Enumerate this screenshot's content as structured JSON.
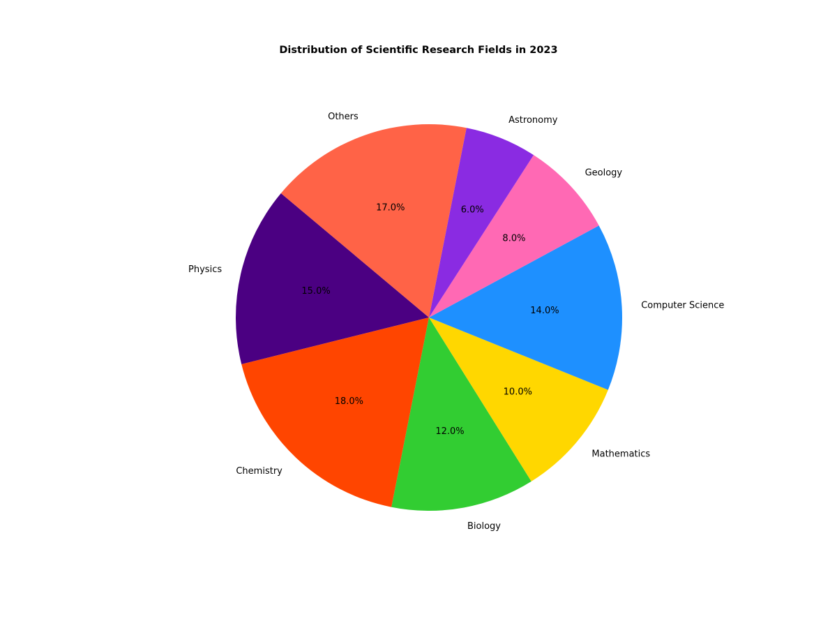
{
  "chart_data": {
    "type": "pie",
    "title": "Distribution of Scientific Research Fields in 2023",
    "categories": [
      "Physics",
      "Chemistry",
      "Biology",
      "Mathematics",
      "Computer Science",
      "Geology",
      "Astronomy",
      "Others"
    ],
    "values": [
      15,
      18,
      12,
      10,
      14,
      8,
      6,
      17
    ],
    "percent_labels": [
      "15.0%",
      "18.0%",
      "12.0%",
      "10.0%",
      "14.0%",
      "8.0%",
      "6.0%",
      "17.0%"
    ],
    "colors": [
      "#4b0082",
      "#ff4500",
      "#32cd32",
      "#ffd700",
      "#1e90ff",
      "#ff69b4",
      "#8a2be2",
      "#ff6347"
    ],
    "start_angle_deg": 140,
    "direction": "counterclockwise",
    "legend": "none"
  }
}
